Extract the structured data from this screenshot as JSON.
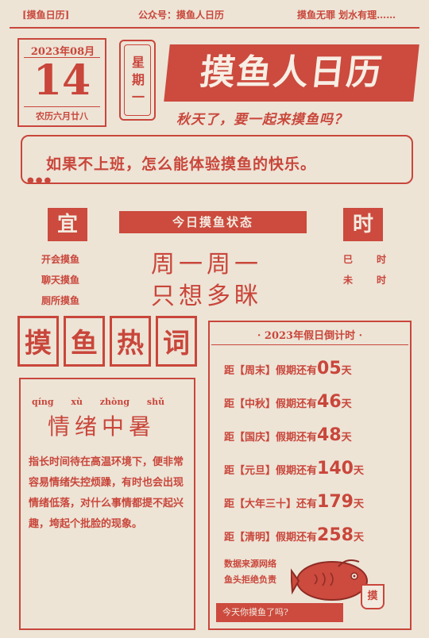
{
  "topbar": {
    "left": "[摸鱼日历]",
    "middle": "公众号：摸鱼人日历",
    "right": "摸鱼无罪 划水有理……"
  },
  "date": {
    "year_month": "2023年08月",
    "day": "14",
    "lunar": "农历六月廿八",
    "weekday": "星期一"
  },
  "title": "摸鱼人日历",
  "subtitle": "秋天了，要一起来摸鱼吗？",
  "banner": {
    "text": "如果不上班，怎么能体验摸鱼的快乐。"
  },
  "yi": {
    "label": "宜",
    "items": [
      "开会摸鱼",
      "聊天摸鱼",
      "厕所摸鱼"
    ]
  },
  "status": {
    "title": "今日摸鱼状态",
    "line1": "周一周一",
    "line2": "只想多眯"
  },
  "shi": {
    "label": "时",
    "items": [
      {
        "a": "巳",
        "b": "时"
      },
      {
        "a": "未",
        "b": "时"
      }
    ]
  },
  "hotwords": {
    "chars": [
      "摸",
      "鱼",
      "热",
      "词"
    ],
    "pinyin": "qíng xù zhòng shǔ",
    "word": "情绪中暑",
    "description": "指长时间待在高温环境下，便非常容易情绪失控烦躁，有时也会出现情绪低落，对什么事情都提不起兴趣，垮起个批脸的现象。"
  },
  "countdown": {
    "title": "· 2023年假日倒计时 ·",
    "rows": [
      {
        "prefix": "距",
        "name": "【周末】",
        "text": "假期还有",
        "days": "05",
        "suffix": "天"
      },
      {
        "prefix": "距",
        "name": "【中秋】",
        "text": "假期还有",
        "days": "46",
        "suffix": "天"
      },
      {
        "prefix": "距",
        "name": "【国庆】",
        "text": "假期还有",
        "days": "48",
        "suffix": "天"
      },
      {
        "prefix": "距",
        "name": "【元旦】",
        "text": "假期还有",
        "days": "140",
        "suffix": "天"
      },
      {
        "prefix": "距",
        "name": "【大年三十】",
        "text": "还有",
        "days": "179",
        "suffix": "天"
      },
      {
        "prefix": "距",
        "name": "【清明】",
        "text": "假期还有",
        "days": "258",
        "suffix": "天"
      }
    ],
    "note1": "数据来源网络",
    "note2": "鱼头拒绝负责",
    "footer": "今天你摸鱼了吗?",
    "cup_label": "摸"
  },
  "colors": {
    "accent": "#c9463b",
    "paper": "#ede4d6"
  }
}
